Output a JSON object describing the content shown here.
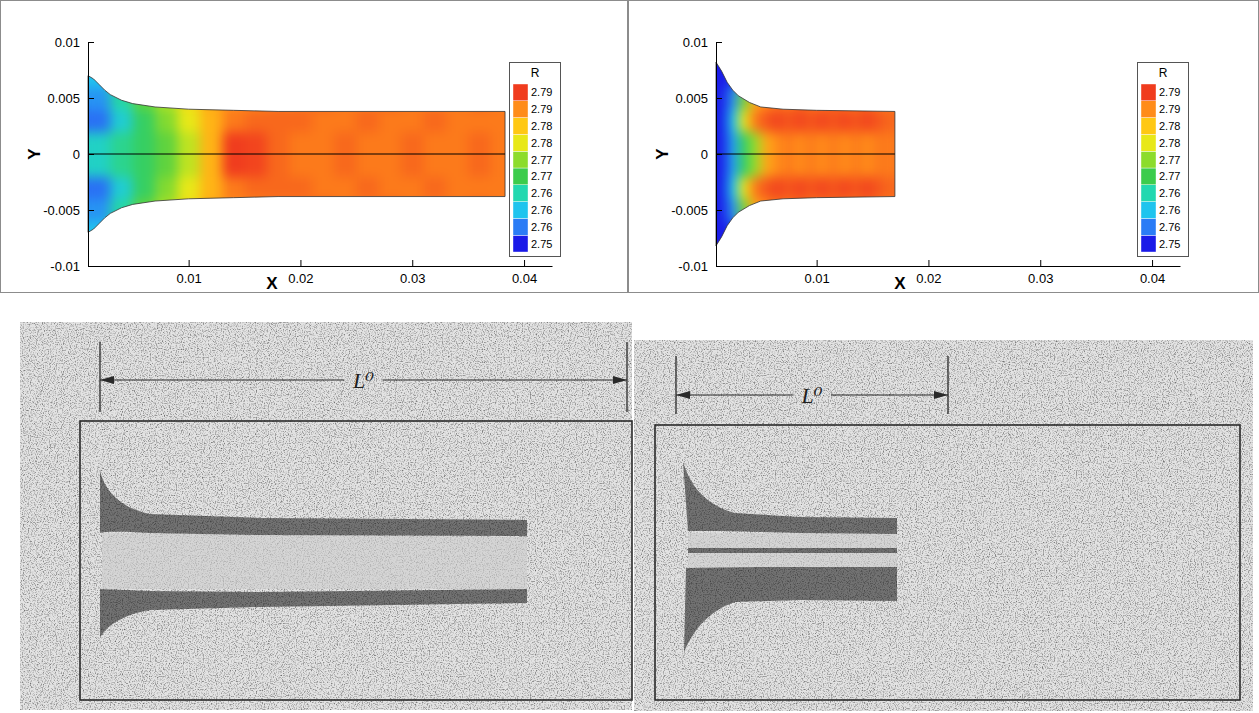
{
  "chart_data": [
    {
      "type": "heatmap",
      "xlabel": "X",
      "ylabel": "Y",
      "xlim": [
        0.001,
        0.0425
      ],
      "ylim": [
        -0.01,
        0.01
      ],
      "xticks": [
        0.01,
        0.02,
        0.03,
        0.04
      ],
      "yticks": [
        -0.01,
        -0.005,
        0,
        0.005,
        0.01
      ],
      "x": [
        0.002,
        0.004,
        0.006,
        0.008,
        0.01,
        0.012,
        0.014,
        0.016,
        0.018,
        0.02,
        0.022,
        0.024,
        0.026,
        0.028,
        0.03,
        0.032,
        0.034,
        0.036,
        0.038
      ],
      "y": [
        -0.007,
        -0.005,
        -0.003,
        -0.001,
        0.001,
        0.003,
        0.005,
        0.007
      ],
      "values": [
        [
          2.76,
          2.768,
          2.772,
          2.776,
          2.781,
          2.785,
          2.787,
          2.787,
          2.787,
          2.787,
          2.787,
          2.787,
          2.787,
          2.787,
          2.787,
          2.787,
          2.787,
          2.787,
          2.787
        ],
        [
          2.757,
          2.765,
          2.771,
          2.775,
          2.78,
          2.785,
          2.787,
          2.787,
          2.788,
          2.788,
          2.789,
          2.788,
          2.788,
          2.789,
          2.788,
          2.788,
          2.788,
          2.789,
          2.788
        ],
        [
          2.755,
          2.762,
          2.768,
          2.773,
          2.778,
          2.784,
          2.788,
          2.789,
          2.789,
          2.789,
          2.788,
          2.788,
          2.789,
          2.788,
          2.788,
          2.789,
          2.788,
          2.788,
          2.788
        ],
        [
          2.763,
          2.766,
          2.768,
          2.771,
          2.776,
          2.784,
          2.792,
          2.791,
          2.789,
          2.788,
          2.788,
          2.789,
          2.788,
          2.788,
          2.789,
          2.788,
          2.788,
          2.789,
          2.788
        ],
        [
          2.763,
          2.766,
          2.768,
          2.771,
          2.776,
          2.784,
          2.792,
          2.791,
          2.789,
          2.788,
          2.788,
          2.789,
          2.788,
          2.788,
          2.789,
          2.788,
          2.788,
          2.789,
          2.788
        ],
        [
          2.755,
          2.762,
          2.768,
          2.773,
          2.778,
          2.784,
          2.788,
          2.789,
          2.789,
          2.789,
          2.788,
          2.788,
          2.789,
          2.788,
          2.788,
          2.789,
          2.788,
          2.788,
          2.788
        ],
        [
          2.757,
          2.765,
          2.771,
          2.775,
          2.78,
          2.785,
          2.787,
          2.787,
          2.788,
          2.788,
          2.789,
          2.788,
          2.788,
          2.789,
          2.788,
          2.788,
          2.788,
          2.789,
          2.788
        ],
        [
          2.76,
          2.768,
          2.772,
          2.776,
          2.781,
          2.785,
          2.787,
          2.787,
          2.787,
          2.787,
          2.787,
          2.787,
          2.787,
          2.787,
          2.787,
          2.787,
          2.787,
          2.787,
          2.787
        ]
      ],
      "outline": {
        "x": [
          0.001,
          0.0015,
          0.002,
          0.0025,
          0.003,
          0.004,
          0.005,
          0.007,
          0.01,
          0.014,
          0.018,
          0.0383,
          0.0383,
          0.018,
          0.014,
          0.01,
          0.007,
          0.005,
          0.004,
          0.003,
          0.0025,
          0.002,
          0.0015,
          0.001
        ],
        "y": [
          0.007,
          0.0067,
          0.0062,
          0.0057,
          0.0053,
          0.0048,
          0.0045,
          0.0042,
          0.004,
          0.0039,
          0.0038,
          0.0038,
          -0.0038,
          -0.0038,
          -0.0039,
          -0.004,
          -0.0042,
          -0.0045,
          -0.0048,
          -0.0053,
          -0.0057,
          -0.0062,
          -0.0067,
          -0.007
        ]
      },
      "colorbar": {
        "title": "R",
        "range": [
          2.74875,
          2.79375
        ],
        "ticks": [
          {
            "value": 2.751,
            "label": "2.75"
          },
          {
            "value": 2.7555,
            "label": "2.76"
          },
          2.76,
          {
            "value": 2.7645,
            "label": "2.76"
          },
          {
            "value": 2.769,
            "label": "2.77"
          },
          {
            "value": 2.7735,
            "label": "2.77"
          },
          {
            "value": 2.778,
            "label": "2.78"
          },
          {
            "value": 2.7825,
            "label": "2.78"
          },
          {
            "value": 2.787,
            "label": "2.79"
          },
          {
            "value": 2.7915,
            "label": "2.79"
          }
        ]
      }
    },
    {
      "type": "heatmap",
      "xlabel": "X",
      "ylabel": "Y",
      "xlim": [
        0.001,
        0.0425
      ],
      "ylim": [
        -0.01,
        0.01
      ],
      "xticks": [
        0.01,
        0.02,
        0.03,
        0.04
      ],
      "yticks": [
        -0.01,
        -0.005,
        0,
        0.005,
        0.01
      ],
      "x": [
        0.0015,
        0.0025,
        0.0035,
        0.0045,
        0.0055,
        0.0065,
        0.0075,
        0.0085,
        0.0095,
        0.0105,
        0.0115,
        0.0125,
        0.0135,
        0.0145,
        0.0155,
        0.0165
      ],
      "y": [
        -0.007,
        -0.005,
        -0.003,
        -0.001,
        0.001,
        0.003,
        0.005,
        0.007
      ],
      "values": [
        [
          2.75,
          2.752,
          2.76,
          2.77,
          2.78,
          2.785,
          2.787,
          2.787,
          2.787,
          2.787,
          2.787,
          2.787,
          2.787,
          2.787,
          2.787,
          2.787
        ],
        [
          2.75,
          2.757,
          2.772,
          2.785,
          2.787,
          2.788,
          2.788,
          2.789,
          2.788,
          2.788,
          2.789,
          2.788,
          2.788,
          2.789,
          2.788,
          2.788
        ],
        [
          2.751,
          2.76,
          2.778,
          2.788,
          2.79,
          2.791,
          2.79,
          2.791,
          2.79,
          2.791,
          2.79,
          2.791,
          2.79,
          2.791,
          2.79,
          2.789
        ],
        [
          2.751,
          2.758,
          2.768,
          2.774,
          2.785,
          2.787,
          2.788,
          2.787,
          2.788,
          2.787,
          2.788,
          2.787,
          2.788,
          2.787,
          2.788,
          2.788
        ],
        [
          2.751,
          2.758,
          2.768,
          2.774,
          2.785,
          2.787,
          2.788,
          2.787,
          2.788,
          2.787,
          2.788,
          2.787,
          2.788,
          2.787,
          2.788,
          2.788
        ],
        [
          2.751,
          2.76,
          2.778,
          2.788,
          2.79,
          2.791,
          2.79,
          2.791,
          2.79,
          2.791,
          2.79,
          2.791,
          2.79,
          2.791,
          2.79,
          2.789
        ],
        [
          2.75,
          2.757,
          2.772,
          2.785,
          2.787,
          2.788,
          2.788,
          2.789,
          2.788,
          2.788,
          2.789,
          2.788,
          2.788,
          2.789,
          2.788,
          2.788
        ],
        [
          2.75,
          2.752,
          2.76,
          2.77,
          2.78,
          2.785,
          2.787,
          2.787,
          2.787,
          2.787,
          2.787,
          2.787,
          2.787,
          2.787,
          2.787,
          2.787
        ]
      ],
      "outline": {
        "x": [
          0.001,
          0.0015,
          0.002,
          0.0025,
          0.003,
          0.004,
          0.005,
          0.007,
          0.01,
          0.017,
          0.017,
          0.01,
          0.007,
          0.005,
          0.004,
          0.003,
          0.0025,
          0.002,
          0.0015,
          0.001
        ],
        "y": [
          0.0082,
          0.0074,
          0.0064,
          0.0057,
          0.0052,
          0.0046,
          0.0042,
          0.004,
          0.0039,
          0.0038,
          -0.0038,
          -0.0039,
          -0.004,
          -0.0042,
          -0.0046,
          -0.0052,
          -0.0057,
          -0.0064,
          -0.0074,
          -0.0082
        ]
      },
      "colorbar": {
        "title": "R",
        "range": [
          2.74875,
          2.79375
        ],
        "ticks": [
          {
            "value": 2.751,
            "label": "2.75"
          },
          {
            "value": 2.7555,
            "label": "2.76"
          },
          2.76,
          {
            "value": 2.7645,
            "label": "2.76"
          },
          {
            "value": 2.769,
            "label": "2.77"
          },
          {
            "value": 2.7735,
            "label": "2.77"
          },
          {
            "value": 2.778,
            "label": "2.78"
          },
          {
            "value": 2.7825,
            "label": "2.78"
          },
          {
            "value": 2.787,
            "label": "2.79"
          },
          {
            "value": 2.7915,
            "label": "2.79"
          }
        ]
      }
    }
  ],
  "sketches": [
    {
      "dimension_label": "L⁰"
    },
    {
      "dimension_label": "L⁰"
    }
  ]
}
